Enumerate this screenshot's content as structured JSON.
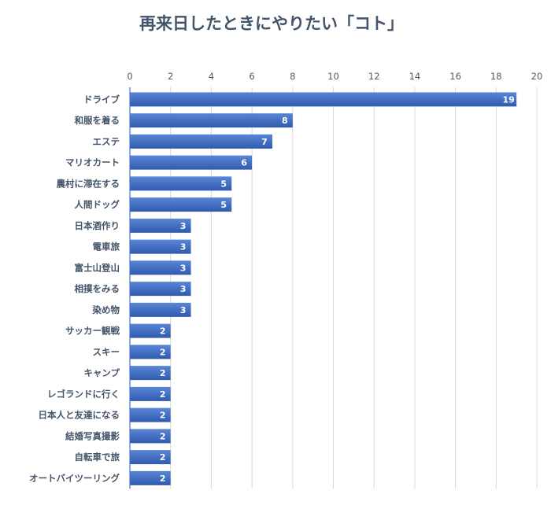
{
  "chart_data": {
    "type": "bar",
    "orientation": "horizontal",
    "title": "再来日したときにやりたい「コト」",
    "xlabel": "",
    "ylabel": "",
    "xlim": [
      0,
      20
    ],
    "xticks": [
      0,
      2,
      4,
      6,
      8,
      10,
      12,
      14,
      16,
      18,
      20
    ],
    "grid": true,
    "legend": "none",
    "categories": [
      "ドライブ",
      "和服を着る",
      "エステ",
      "マリオカート",
      "農村に滞在する",
      "人間ドッグ",
      "日本酒作り",
      "電車旅",
      "富士山登山",
      "相撲をみる",
      "染め物",
      "サッカー観戦",
      "スキー",
      "キャンプ",
      "レゴランドに行く",
      "日本人と友達になる",
      "結婚写真撮影",
      "自転車で旅",
      "オートバイツーリング"
    ],
    "values": [
      19,
      8,
      7,
      6,
      5,
      5,
      3,
      3,
      3,
      3,
      3,
      2,
      2,
      2,
      2,
      2,
      2,
      2,
      2
    ],
    "colors": {
      "bar_top": "#5b86d6",
      "bar_bottom": "#2f5aae",
      "grid": "#d9d9d9",
      "axis": "#4472c4"
    }
  }
}
